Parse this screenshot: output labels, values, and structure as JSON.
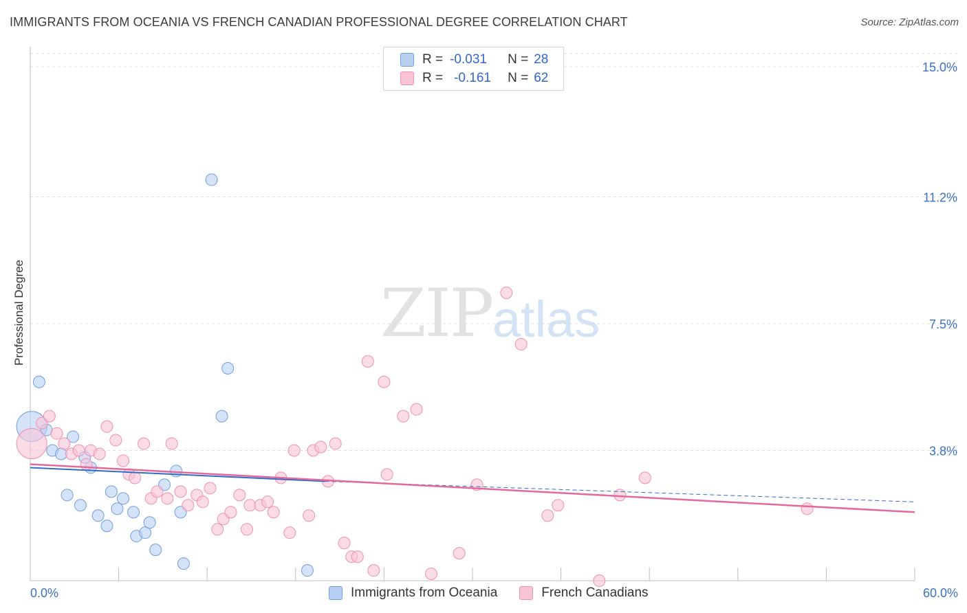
{
  "title": "IMMIGRANTS FROM OCEANIA VS FRENCH CANADIAN PROFESSIONAL DEGREE CORRELATION CHART",
  "source": "Source: ZipAtlas.com",
  "watermark": {
    "zip": "ZIP",
    "atlas": "atlas"
  },
  "legend": {
    "rows": [
      {
        "r_label": "R =",
        "r_value": "-0.031",
        "n_label": "N =",
        "n_value": "28"
      },
      {
        "r_label": "R =",
        "r_value": "-0.161",
        "n_label": "N =",
        "n_value": "62"
      }
    ]
  },
  "colors": {
    "blue_fill": "#b8d0f2",
    "blue_stroke": "#6f9ee0",
    "blue_line": "#2f6cc9",
    "pink_fill": "#f8c5d6",
    "pink_stroke": "#ee90b0",
    "pink_line": "#e4699a",
    "grid": "#dcdcdc",
    "tick_text": "#3b70cc"
  },
  "chart_data": {
    "type": "scatter",
    "title": "IMMIGRANTS FROM OCEANIA VS FRENCH CANADIAN PROFESSIONAL DEGREE CORRELATION CHART",
    "xlabel": "",
    "ylabel": "Professional Degree",
    "xlim": [
      0,
      60
    ],
    "ylim": [
      0,
      15.5
    ],
    "x_tick_labels": [
      "0.0%",
      "60.0%"
    ],
    "y_ticks": [
      {
        "value": 3.8,
        "label": "3.8%"
      },
      {
        "value": 7.5,
        "label": "7.5%"
      },
      {
        "value": 11.2,
        "label": "11.2%"
      },
      {
        "value": 15.0,
        "label": "15.0%"
      }
    ],
    "legend_position": "top-center",
    "series": [
      {
        "name": "Immigrants from Oceania",
        "color_key": "blue",
        "trend": {
          "x": [
            0,
            20
          ],
          "y": [
            3.3,
            2.9
          ],
          "dashed_to": [
            60,
            2.3
          ]
        },
        "points": [
          [
            0.1,
            4.5,
            3
          ],
          [
            0.6,
            5.8,
            1
          ],
          [
            1.1,
            4.4,
            1
          ],
          [
            1.5,
            3.8,
            1
          ],
          [
            2.1,
            3.7,
            1
          ],
          [
            2.5,
            2.5,
            1
          ],
          [
            2.9,
            4.2,
            1
          ],
          [
            3.4,
            2.2,
            1
          ],
          [
            3.7,
            3.6,
            1
          ],
          [
            4.1,
            3.3,
            1
          ],
          [
            4.6,
            1.9,
            1
          ],
          [
            5.2,
            1.6,
            1
          ],
          [
            5.5,
            2.6,
            1
          ],
          [
            5.9,
            2.1,
            1
          ],
          [
            6.3,
            2.4,
            1
          ],
          [
            7.0,
            2.0,
            1
          ],
          [
            7.2,
            1.3,
            1
          ],
          [
            7.8,
            1.4,
            1
          ],
          [
            8.1,
            1.7,
            1
          ],
          [
            8.5,
            0.9,
            1
          ],
          [
            9.1,
            2.8,
            1
          ],
          [
            9.9,
            3.2,
            1
          ],
          [
            10.2,
            2.0,
            1
          ],
          [
            10.4,
            0.5,
            1
          ],
          [
            12.3,
            11.7,
            1
          ],
          [
            13.0,
            4.8,
            1
          ],
          [
            13.4,
            6.2,
            1
          ],
          [
            18.8,
            0.3,
            1
          ]
        ]
      },
      {
        "name": "French Canadians",
        "color_key": "pink",
        "trend": {
          "x": [
            0,
            60
          ],
          "y": [
            3.4,
            2.0
          ]
        },
        "points": [
          [
            0.1,
            4.0,
            3
          ],
          [
            0.8,
            4.6,
            1
          ],
          [
            1.3,
            4.8,
            1
          ],
          [
            1.8,
            4.3,
            1
          ],
          [
            2.3,
            4.0,
            1
          ],
          [
            2.8,
            3.7,
            1
          ],
          [
            3.3,
            3.8,
            1
          ],
          [
            3.8,
            3.4,
            1
          ],
          [
            4.1,
            3.8,
            1
          ],
          [
            4.7,
            3.7,
            1
          ],
          [
            5.2,
            4.5,
            1
          ],
          [
            5.8,
            4.1,
            1
          ],
          [
            6.3,
            3.5,
            1
          ],
          [
            6.7,
            3.1,
            1
          ],
          [
            7.1,
            3.0,
            1
          ],
          [
            7.7,
            4.0,
            1
          ],
          [
            8.2,
            2.4,
            1
          ],
          [
            8.6,
            2.6,
            1
          ],
          [
            9.3,
            2.4,
            1
          ],
          [
            9.6,
            4.0,
            1
          ],
          [
            10.2,
            2.6,
            1
          ],
          [
            10.7,
            2.2,
            1
          ],
          [
            11.3,
            2.5,
            1
          ],
          [
            11.7,
            2.3,
            1
          ],
          [
            12.2,
            2.7,
            1
          ],
          [
            12.7,
            1.5,
            1
          ],
          [
            13.1,
            1.8,
            1
          ],
          [
            13.6,
            2.0,
            1
          ],
          [
            14.2,
            2.5,
            1
          ],
          [
            14.7,
            1.5,
            1
          ],
          [
            14.9,
            2.2,
            1
          ],
          [
            15.6,
            2.2,
            1
          ],
          [
            16.1,
            2.3,
            1
          ],
          [
            16.5,
            2.0,
            1
          ],
          [
            17.0,
            3.0,
            1
          ],
          [
            17.6,
            1.4,
            1
          ],
          [
            17.9,
            3.8,
            1
          ],
          [
            18.9,
            1.9,
            1
          ],
          [
            19.2,
            3.8,
            1
          ],
          [
            19.7,
            3.9,
            1
          ],
          [
            20.2,
            2.9,
            1
          ],
          [
            20.7,
            4.0,
            1
          ],
          [
            21.3,
            1.1,
            1
          ],
          [
            21.8,
            0.7,
            1
          ],
          [
            22.2,
            0.7,
            1
          ],
          [
            22.9,
            6.4,
            1
          ],
          [
            23.3,
            0.3,
            1
          ],
          [
            24.0,
            5.8,
            1
          ],
          [
            24.2,
            3.1,
            1
          ],
          [
            25.3,
            4.8,
            1
          ],
          [
            26.2,
            5.0,
            1
          ],
          [
            27.2,
            0.2,
            1
          ],
          [
            29.1,
            0.8,
            1
          ],
          [
            30.3,
            2.8,
            1
          ],
          [
            32.3,
            8.4,
            1
          ],
          [
            33.3,
            6.9,
            1
          ],
          [
            35.1,
            1.9,
            1
          ],
          [
            35.8,
            2.2,
            1
          ],
          [
            38.6,
            0.0,
            1
          ],
          [
            40.0,
            2.5,
            1
          ],
          [
            41.7,
            3.0,
            1
          ],
          [
            52.7,
            2.1,
            1
          ]
        ]
      }
    ]
  },
  "bottom_legend": [
    "Immigrants from Oceania",
    "French Canadians"
  ]
}
